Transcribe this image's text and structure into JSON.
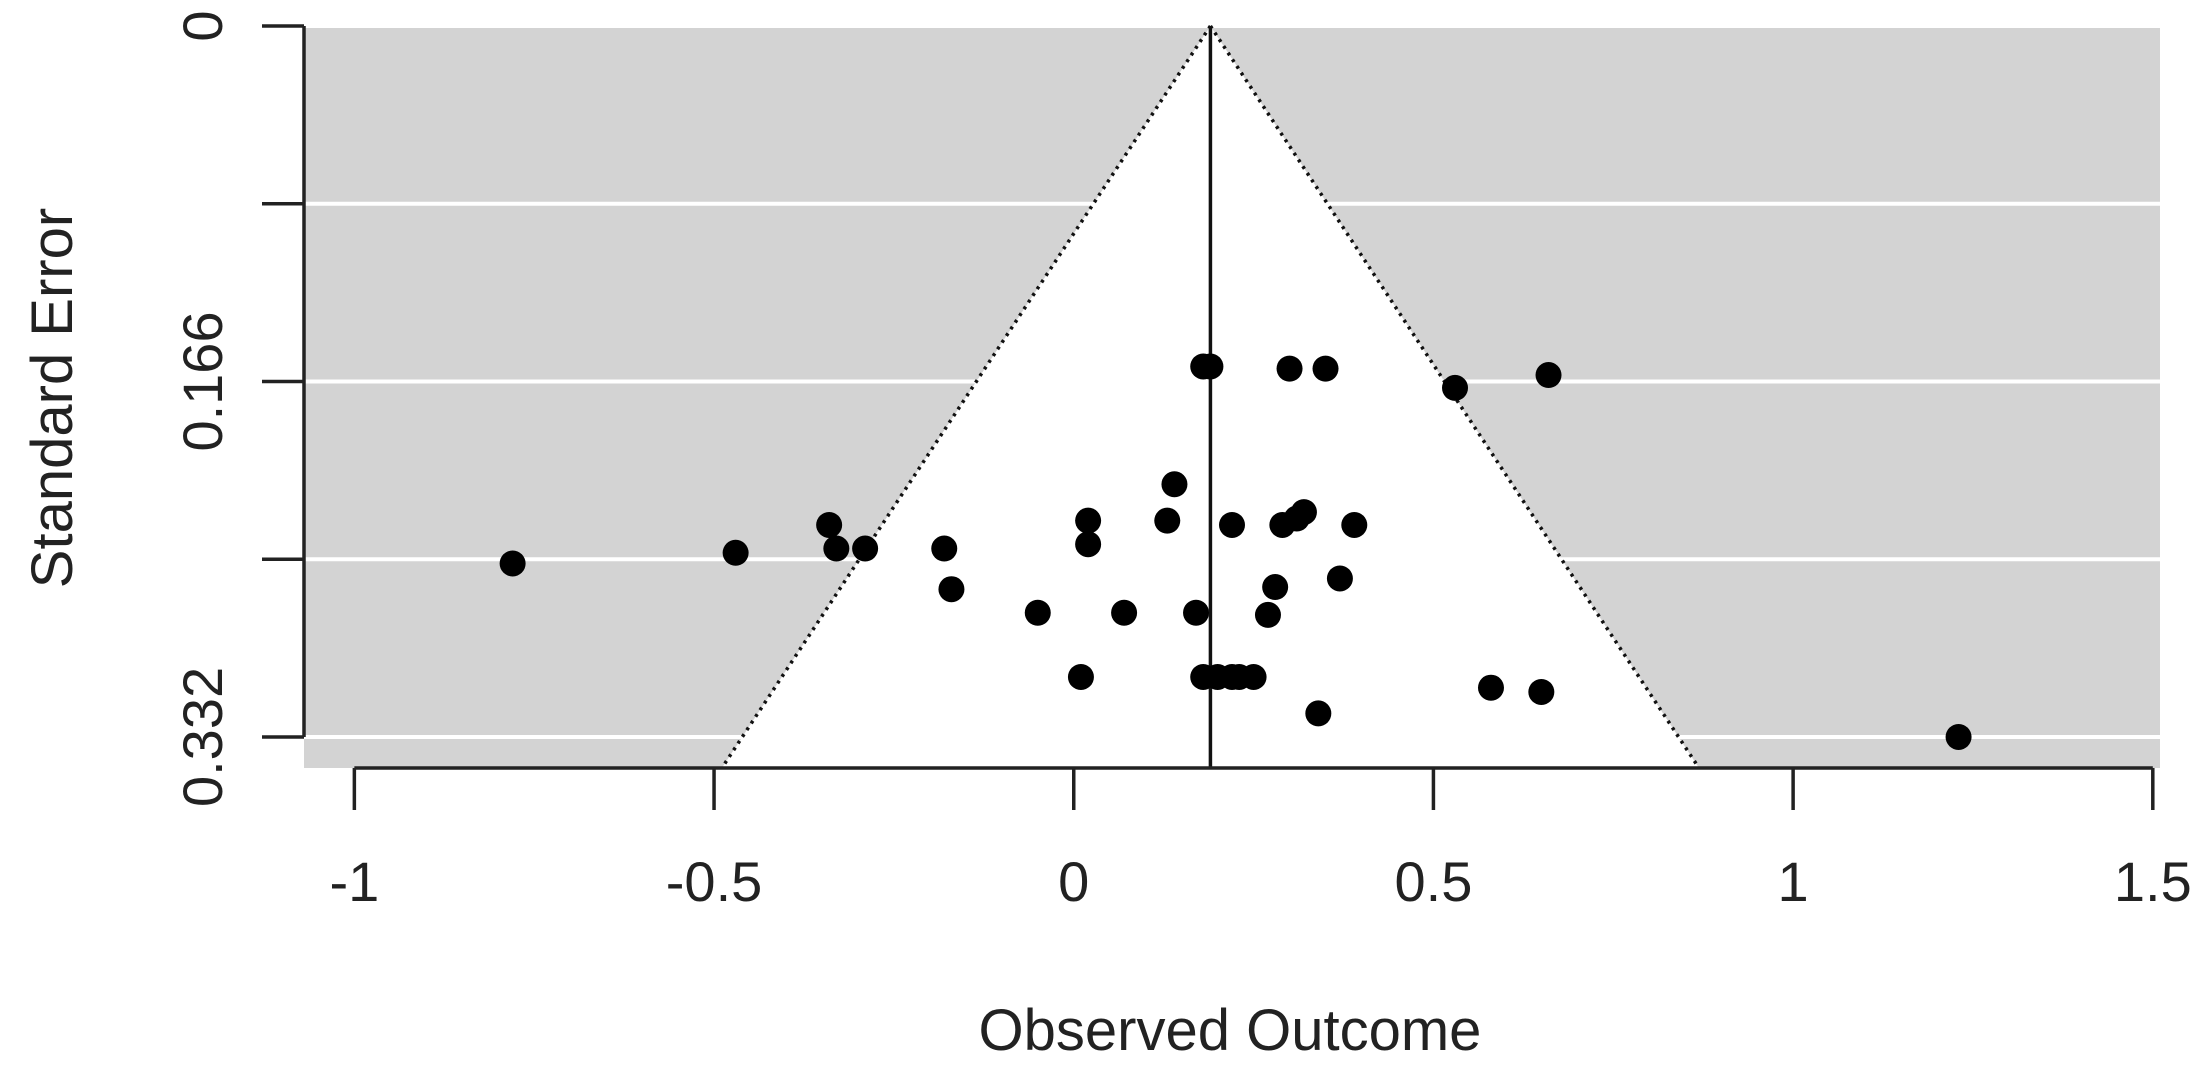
{
  "chart_data": {
    "type": "scatter",
    "subtype": "funnel-plot",
    "title": "",
    "xlabel": "Observed Outcome",
    "ylabel": "Standard Error",
    "xlim": [
      -1.07,
      1.51
    ],
    "ylim": [
      0,
      0.3465
    ],
    "y_axis_reversed": true,
    "xticks": [
      {
        "value": -1,
        "label": "-1"
      },
      {
        "value": -0.5,
        "label": "-0.5"
      },
      {
        "value": 0,
        "label": "0"
      },
      {
        "value": 0.5,
        "label": "0.5"
      },
      {
        "value": 1,
        "label": "1"
      },
      {
        "value": 1.5,
        "label": "1.5"
      }
    ],
    "yticks": [
      {
        "value": 0,
        "label": "0"
      },
      {
        "value": 0.083,
        "label": ""
      },
      {
        "value": 0.166,
        "label": "0.166"
      },
      {
        "value": 0.249,
        "label": ""
      },
      {
        "value": 0.332,
        "label": "0.332"
      }
    ],
    "pooled_estimate": 0.19,
    "funnel_z": 1.96,
    "grid": true,
    "colors": {
      "panel_background": "#d3d3d3",
      "funnel_interior": "#ffffff",
      "gridline": "#ffffff",
      "points": "#000000",
      "axis": "#222222"
    },
    "points": [
      {
        "x": -0.78,
        "y": 0.251
      },
      {
        "x": -0.47,
        "y": 0.246
      },
      {
        "x": -0.34,
        "y": 0.233
      },
      {
        "x": -0.33,
        "y": 0.244
      },
      {
        "x": -0.29,
        "y": 0.244
      },
      {
        "x": -0.18,
        "y": 0.244
      },
      {
        "x": -0.17,
        "y": 0.263
      },
      {
        "x": -0.05,
        "y": 0.274
      },
      {
        "x": 0.01,
        "y": 0.304
      },
      {
        "x": 0.02,
        "y": 0.242
      },
      {
        "x": 0.02,
        "y": 0.231
      },
      {
        "x": 0.07,
        "y": 0.274
      },
      {
        "x": 0.13,
        "y": 0.231
      },
      {
        "x": 0.14,
        "y": 0.214
      },
      {
        "x": 0.17,
        "y": 0.274
      },
      {
        "x": 0.18,
        "y": 0.159
      },
      {
        "x": 0.19,
        "y": 0.159
      },
      {
        "x": 0.18,
        "y": 0.304
      },
      {
        "x": 0.2,
        "y": 0.304
      },
      {
        "x": 0.22,
        "y": 0.304
      },
      {
        "x": 0.23,
        "y": 0.304
      },
      {
        "x": 0.25,
        "y": 0.304
      },
      {
        "x": 0.22,
        "y": 0.233
      },
      {
        "x": 0.27,
        "y": 0.275
      },
      {
        "x": 0.28,
        "y": 0.262
      },
      {
        "x": 0.29,
        "y": 0.233
      },
      {
        "x": 0.3,
        "y": 0.16
      },
      {
        "x": 0.31,
        "y": 0.23
      },
      {
        "x": 0.32,
        "y": 0.227
      },
      {
        "x": 0.34,
        "y": 0.321
      },
      {
        "x": 0.35,
        "y": 0.16
      },
      {
        "x": 0.37,
        "y": 0.258
      },
      {
        "x": 0.39,
        "y": 0.233
      },
      {
        "x": 0.53,
        "y": 0.169
      },
      {
        "x": 0.58,
        "y": 0.309
      },
      {
        "x": 0.65,
        "y": 0.311
      },
      {
        "x": 0.66,
        "y": 0.163
      },
      {
        "x": 1.23,
        "y": 0.332
      }
    ]
  }
}
